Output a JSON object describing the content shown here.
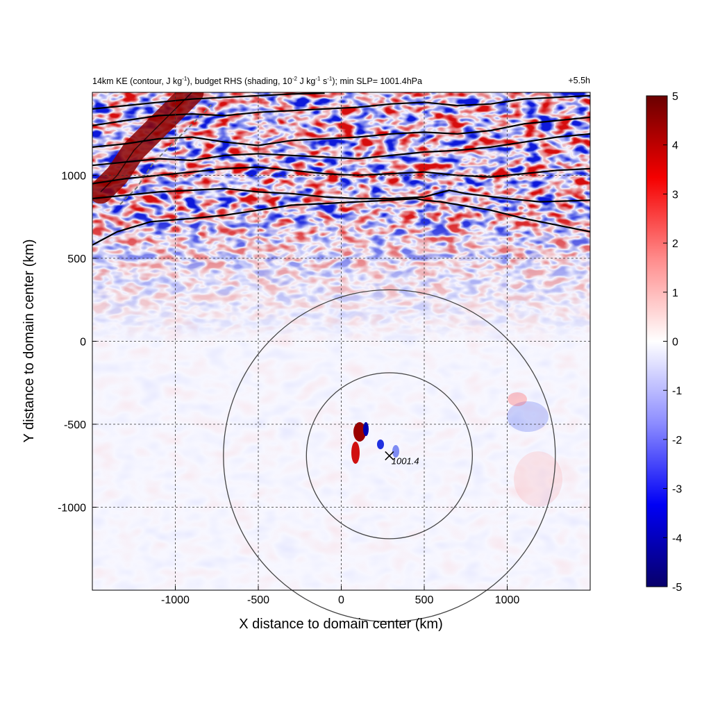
{
  "title": {
    "prefix": "14km KE (contour, J kg",
    "exp1": "-1",
    "part2": "), budget RHS (shading, 10",
    "exp2": "-2",
    "part3": " J kg",
    "exp3": "-1",
    "part4": " s",
    "exp4": "-1",
    "part5": "); min SLP= 1001.4hPa",
    "time": "+5.5h"
  },
  "chart_data": {
    "type": "heatmap",
    "xlabel": "X distance to domain center (km)",
    "ylabel": "Y distance to domain center (km)",
    "xlim": [
      -1500,
      1500
    ],
    "ylim": [
      -1500,
      1500
    ],
    "xticks": [
      -1000,
      -500,
      0,
      500,
      1000
    ],
    "yticks": [
      -1000,
      -500,
      0,
      500,
      1000
    ],
    "xtick_labels": [
      "-1000",
      "-500",
      "0",
      "500",
      "1000"
    ],
    "ytick_labels": [
      "-1000",
      "-500",
      "0",
      "500",
      "1000"
    ],
    "grid": true,
    "colorbar": {
      "min": -5,
      "max": 5,
      "ticks": [
        5,
        4,
        3,
        2,
        1,
        0,
        -1,
        -2,
        -3,
        -4,
        -5
      ],
      "tick_labels": [
        "5",
        "4",
        "3",
        "2",
        "1",
        "0",
        "-1",
        "-2",
        "-3",
        "-4",
        "-5"
      ],
      "colors": [
        "#08006a",
        "#0000f5",
        "#8c8cff",
        "#ffffff",
        "#ff8c8c",
        "#f50000",
        "#6a0000"
      ]
    },
    "storm_center": {
      "x": 290,
      "y": -690,
      "label": "1001.4"
    },
    "range_circles_km": [
      500,
      1000
    ],
    "contour_lines": [
      {
        "points": [
          [
            -1500,
            580
          ],
          [
            -1350,
            660
          ],
          [
            -1150,
            720
          ],
          [
            -900,
            740
          ],
          [
            -700,
            760
          ],
          [
            -500,
            790
          ],
          [
            -300,
            820
          ],
          [
            -100,
            830
          ],
          [
            100,
            840
          ],
          [
            300,
            850
          ],
          [
            450,
            860
          ],
          [
            500,
            850
          ],
          [
            600,
            840
          ],
          [
            900,
            790
          ],
          [
            1100,
            740
          ],
          [
            1300,
            700
          ],
          [
            1500,
            660
          ]
        ]
      },
      {
        "points": [
          [
            -1500,
            860
          ],
          [
            -1300,
            880
          ],
          [
            -1100,
            900
          ],
          [
            -900,
            910
          ],
          [
            -700,
            920
          ],
          [
            -500,
            900
          ],
          [
            -300,
            890
          ],
          [
            -100,
            870
          ],
          [
            100,
            860
          ],
          [
            300,
            860
          ],
          [
            500,
            870
          ],
          [
            650,
            910
          ],
          [
            750,
            890
          ],
          [
            1000,
            860
          ],
          [
            1200,
            840
          ],
          [
            1500,
            850
          ]
        ]
      },
      {
        "points": [
          [
            -1500,
            950
          ],
          [
            -1300,
            980
          ],
          [
            -1100,
            1000
          ],
          [
            -900,
            1020
          ],
          [
            -700,
            1040
          ],
          [
            -500,
            1050
          ],
          [
            -300,
            1030
          ],
          [
            -100,
            1010
          ],
          [
            100,
            1000
          ],
          [
            300,
            1010
          ],
          [
            500,
            1020
          ],
          [
            700,
            1000
          ],
          [
            900,
            990
          ],
          [
            1100,
            1010
          ],
          [
            1300,
            1030
          ],
          [
            1500,
            1040
          ]
        ]
      },
      {
        "points": [
          [
            -1500,
            1060
          ],
          [
            -1300,
            1080
          ],
          [
            -1100,
            1100
          ],
          [
            -900,
            1090
          ],
          [
            -700,
            1120
          ],
          [
            -500,
            1130
          ],
          [
            -300,
            1120
          ],
          [
            -100,
            1110
          ],
          [
            100,
            1100
          ],
          [
            300,
            1120
          ],
          [
            500,
            1140
          ],
          [
            700,
            1150
          ],
          [
            900,
            1170
          ],
          [
            1100,
            1200
          ],
          [
            1300,
            1230
          ],
          [
            1500,
            1250
          ]
        ]
      },
      {
        "points": [
          [
            -1500,
            1170
          ],
          [
            -1300,
            1190
          ],
          [
            -1100,
            1220
          ],
          [
            -900,
            1230
          ],
          [
            -700,
            1200
          ],
          [
            -500,
            1180
          ],
          [
            -300,
            1210
          ],
          [
            -100,
            1220
          ],
          [
            100,
            1230
          ],
          [
            300,
            1250
          ],
          [
            500,
            1260
          ],
          [
            700,
            1250
          ],
          [
            900,
            1270
          ],
          [
            1100,
            1310
          ],
          [
            1300,
            1330
          ],
          [
            1500,
            1350
          ]
        ]
      },
      {
        "points": [
          [
            -1500,
            1300
          ],
          [
            -1300,
            1330
          ],
          [
            -1100,
            1360
          ],
          [
            -900,
            1370
          ],
          [
            -700,
            1360
          ],
          [
            -500,
            1380
          ],
          [
            -300,
            1390
          ],
          [
            -100,
            1400
          ],
          [
            100,
            1410
          ],
          [
            300,
            1430
          ],
          [
            500,
            1440
          ],
          [
            700,
            1420
          ],
          [
            900,
            1430
          ],
          [
            1100,
            1460
          ],
          [
            1300,
            1470
          ],
          [
            1500,
            1480
          ]
        ]
      },
      {
        "points": [
          [
            -1500,
            1400
          ],
          [
            -1300,
            1420
          ],
          [
            -1100,
            1440
          ],
          [
            -900,
            1460
          ],
          [
            -700,
            1470
          ],
          [
            -500,
            1480
          ],
          [
            -300,
            1490
          ],
          [
            -100,
            1495
          ]
        ]
      }
    ],
    "ke_max_ridge": {
      "points": [
        [
          -1450,
          900
        ],
        [
          -1350,
          1000
        ],
        [
          -1250,
          1150
        ],
        [
          -1100,
          1300
        ],
        [
          -950,
          1450
        ],
        [
          -900,
          1500
        ]
      ]
    }
  }
}
